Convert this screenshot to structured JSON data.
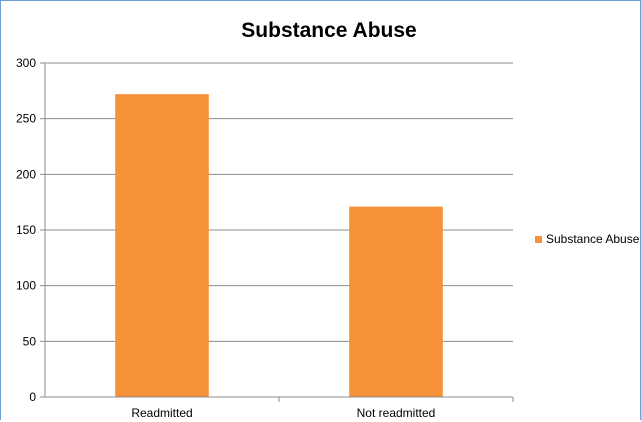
{
  "chart_data": {
    "type": "bar",
    "title": "Substance Abuse",
    "categories": [
      "Readmitted",
      "Not readmitted"
    ],
    "series": [
      {
        "name": "Substance Abuse",
        "values": [
          272,
          171
        ],
        "color": "#f79139"
      }
    ],
    "ylim": [
      0,
      300
    ],
    "yticks": [
      0,
      50,
      100,
      150,
      200,
      250,
      300
    ],
    "xlabel": "",
    "ylabel": "",
    "grid": true,
    "legend": "right"
  }
}
